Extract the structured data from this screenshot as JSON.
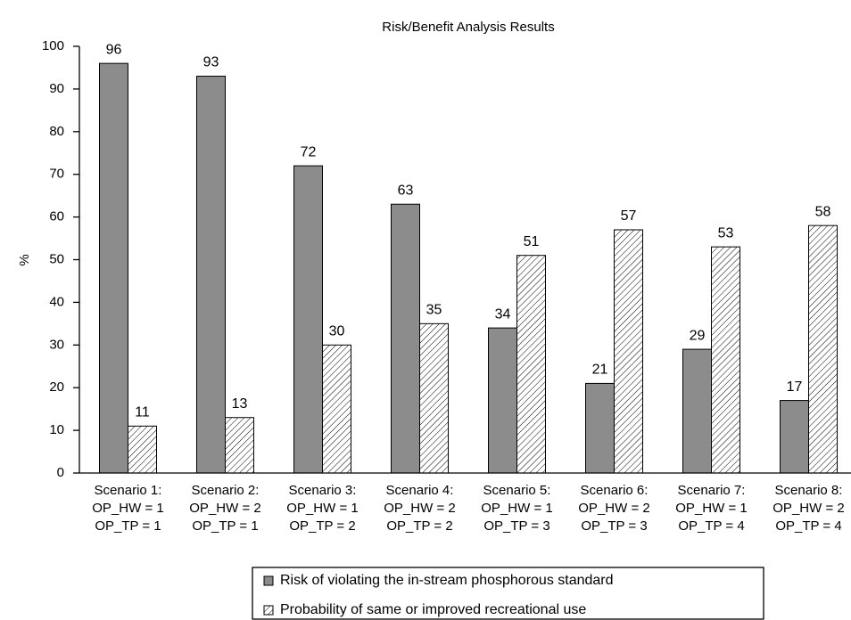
{
  "chart_data": {
    "type": "bar",
    "title": "Risk/Benefit Analysis Results",
    "y_label": "%",
    "categories": [
      [
        "Scenario 1:",
        "OP_HW = 1",
        "OP_TP = 1"
      ],
      [
        "Scenario 2:",
        "OP_HW = 2",
        "OP_TP = 1"
      ],
      [
        "Scenario 3:",
        "OP_HW = 1",
        "OP_TP = 2"
      ],
      [
        "Scenario 4:",
        "OP_HW = 2",
        "OP_TP = 2"
      ],
      [
        "Scenario 5:",
        "OP_HW = 1",
        "OP_TP = 3"
      ],
      [
        "Scenario 6:",
        "OP_HW = 2",
        "OP_TP = 3"
      ],
      [
        "Scenario 7:",
        "OP_HW = 1",
        "OP_TP = 4"
      ],
      [
        "Scenario 8:",
        "OP_HW = 2",
        "OP_TP = 4"
      ]
    ],
    "series": [
      {
        "name": "Risk of violating the in-stream phosphorous standard",
        "color": "#8c8c8c",
        "hatch": false,
        "values": [
          96,
          93,
          72,
          63,
          34,
          21,
          29,
          17
        ]
      },
      {
        "name": "Probability of same or improved recreational use",
        "color": "#000000",
        "hatch": true,
        "values": [
          11,
          13,
          30,
          35,
          51,
          57,
          53,
          58
        ]
      }
    ],
    "ylim": [
      0,
      100
    ],
    "yticks": [
      0,
      10,
      20,
      30,
      40,
      50,
      60,
      70,
      80,
      90,
      100
    ],
    "grid": false,
    "legend": "bottom"
  }
}
